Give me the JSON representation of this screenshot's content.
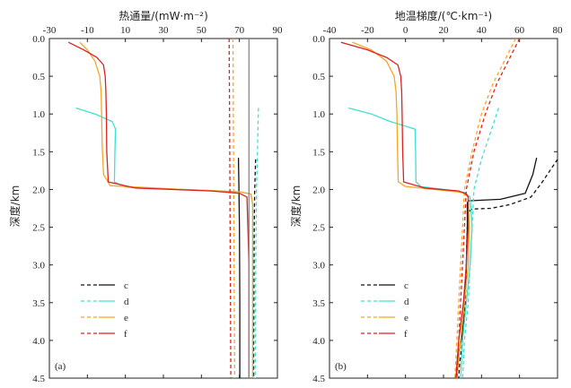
{
  "y_label": "深度/km",
  "chart_data": [
    {
      "type": "line",
      "panel_label": "(a)",
      "title": "热通量/(mW·m⁻²)",
      "xlabel": "热通量/(mW·m⁻²)",
      "ylabel": "深度/km",
      "xlim": [
        -30,
        90
      ],
      "ylim": [
        0.0,
        4.5
      ],
      "x_ticks": [
        "-30",
        "-10",
        "10",
        "30",
        "50",
        "70",
        "90"
      ],
      "y_ticks": [
        "0.0",
        "0.5",
        "1.0",
        "1.5",
        "2.0",
        "2.5",
        "3.0",
        "3.5",
        "4.0",
        "4.5"
      ],
      "legend": [
        "c",
        "d",
        "e",
        "f"
      ],
      "series": [
        {
          "name": "c",
          "style": "dashed",
          "color": "#111111",
          "depth": [
            1.6,
            2.05,
            2.5,
            3.0,
            3.5,
            4.0,
            4.5
          ],
          "x": [
            78.5,
            78.0,
            77.8,
            77.7,
            77.6,
            77.5,
            77.5
          ]
        },
        {
          "name": "c",
          "style": "solid",
          "color": "#111111",
          "depth": [
            1.58,
            2.05,
            2.5,
            3.0,
            3.5,
            4.0,
            4.5
          ],
          "x": [
            69.5,
            69.8,
            70.0,
            70.1,
            70.2,
            70.2,
            70.2
          ]
        },
        {
          "name": "d",
          "style": "dashed",
          "color": "#40e0d0",
          "depth": [
            0.92,
            1.5,
            2.0,
            2.5,
            3.0,
            3.5,
            4.0,
            4.5
          ],
          "x": [
            80.0,
            79.5,
            79.0,
            78.8,
            78.6,
            78.5,
            78.4,
            78.3
          ]
        },
        {
          "name": "d",
          "style": "solid",
          "color": "#40e0d0",
          "depth": [
            0.92,
            1.0,
            1.1,
            1.2,
            1.5,
            1.9,
            1.97,
            2.0,
            2.03,
            2.06,
            2.2,
            3.0,
            4.0,
            4.5
          ],
          "x": [
            -16.0,
            -6.0,
            3.0,
            4.8,
            4.5,
            4.2,
            10.0,
            40.0,
            70.0,
            76.0,
            77.0,
            77.0,
            77.0,
            77.0
          ]
        },
        {
          "name": "e",
          "style": "dashed",
          "color": "#f5a623",
          "depth": [
            0.0,
            1.0,
            2.0,
            3.0,
            4.0,
            4.5
          ],
          "x": [
            66.6,
            66.8,
            67.0,
            67.2,
            67.4,
            67.5
          ]
        },
        {
          "name": "e",
          "style": "solid",
          "color": "#f5a623",
          "depth": [
            0.05,
            0.15,
            0.3,
            0.5,
            0.7,
            1.0,
            1.4,
            1.8,
            1.95,
            2.0,
            2.03,
            2.06,
            2.2,
            3.0,
            4.0,
            4.5
          ],
          "x": [
            -14.0,
            -10.0,
            -6.0,
            -3.5,
            -2.8,
            -2.5,
            -2.2,
            -1.5,
            2.0,
            40.0,
            70.0,
            76.0,
            77.0,
            77.0,
            77.0,
            77.0
          ]
        },
        {
          "name": "f",
          "style": "dashed",
          "color": "#dd2222",
          "depth": [
            0.0,
            1.0,
            2.0,
            3.0,
            4.0,
            4.5
          ],
          "x": [
            64.6,
            64.8,
            65.0,
            65.2,
            65.4,
            65.5
          ]
        },
        {
          "name": "f",
          "style": "solid",
          "color": "#dd2222",
          "depth": [
            0.05,
            0.15,
            0.25,
            0.35,
            0.5,
            0.7,
            1.0,
            1.5,
            1.9,
            1.98,
            2.02,
            2.05,
            2.1,
            3.0,
            4.0,
            4.5
          ],
          "x": [
            -20.0,
            -12.0,
            -5.0,
            -1.5,
            -0.6,
            -0.3,
            0.0,
            0.2,
            1.0,
            15.0,
            55.0,
            70.0,
            74.0,
            75.0,
            75.0,
            75.0
          ]
        },
        {
          "name": "",
          "style": "solid",
          "color": "#888888",
          "depth": [
            0.0,
            4.5
          ],
          "x": [
            75.0,
            75.0
          ]
        }
      ]
    },
    {
      "type": "line",
      "panel_label": "(b)",
      "title": "地温梯度/(℃·km⁻¹)",
      "xlabel": "地温梯度/(℃·km⁻¹)",
      "ylabel": "深度/km",
      "xlim": [
        -40,
        80
      ],
      "ylim": [
        0.0,
        4.5
      ],
      "x_ticks": [
        "-40",
        "-20",
        "0",
        "20",
        "40",
        "60",
        "80"
      ],
      "y_ticks": [
        "0.0",
        "0.5",
        "1.0",
        "1.5",
        "2.0",
        "2.5",
        "3.0",
        "3.5",
        "4.0",
        "4.5"
      ],
      "legend": [
        "c",
        "d",
        "e",
        "f"
      ],
      "series": [
        {
          "name": "c",
          "style": "dashed",
          "color": "#111111",
          "depth": [
            1.6,
            1.9,
            2.1,
            2.2,
            2.25,
            2.26,
            2.3,
            2.5,
            3.0,
            3.5,
            4.0,
            4.3,
            4.5
          ],
          "x": [
            80.0,
            72.0,
            66.0,
            55.0,
            45.0,
            35.0,
            33.0,
            32.5,
            32.0,
            31.5,
            30.0,
            28.5,
            28.0
          ]
        },
        {
          "name": "c",
          "style": "solid",
          "color": "#111111",
          "depth": [
            1.58,
            1.8,
            2.05,
            2.13,
            2.15,
            2.18,
            2.5,
            3.0,
            3.5,
            3.9,
            4.1,
            4.3,
            4.5
          ],
          "x": [
            69.0,
            67.0,
            63.0,
            50.0,
            33.0,
            32.5,
            32.5,
            32.0,
            31.0,
            30.0,
            28.5,
            27.5,
            27.0
          ]
        },
        {
          "name": "d",
          "style": "dashed",
          "color": "#40e0d0",
          "depth": [
            0.92,
            1.3,
            1.6,
            1.8,
            2.0,
            2.5,
            3.0,
            3.5,
            4.0,
            4.5
          ],
          "x": [
            49.0,
            44.0,
            40.0,
            38.0,
            36.0,
            35.0,
            34.0,
            33.0,
            31.0,
            30.0
          ]
        },
        {
          "name": "d",
          "style": "solid",
          "color": "#40e0d0",
          "depth": [
            0.92,
            1.0,
            1.1,
            1.2,
            1.5,
            1.9,
            1.96,
            2.0,
            2.04,
            2.1,
            2.5,
            3.0,
            3.5,
            4.0,
            4.5
          ],
          "x": [
            -30.0,
            -18.0,
            -8.0,
            5.0,
            5.3,
            5.5,
            8.0,
            20.0,
            31.0,
            34.0,
            35.0,
            34.0,
            32.0,
            30.0,
            29.0
          ]
        },
        {
          "name": "e",
          "style": "dashed",
          "color": "#f5a623",
          "depth": [
            0.0,
            0.3,
            0.6,
            1.0,
            1.5,
            2.0,
            2.5,
            3.0,
            3.5,
            4.0,
            4.5
          ],
          "x": [
            58.0,
            52.0,
            46.0,
            40.0,
            35.0,
            31.0,
            30.0,
            29.0,
            28.0,
            27.0,
            26.0
          ]
        },
        {
          "name": "e",
          "style": "solid",
          "color": "#f5a623",
          "depth": [
            0.05,
            0.15,
            0.3,
            0.5,
            0.7,
            1.0,
            1.5,
            1.9,
            1.96,
            2.0,
            2.04,
            2.1,
            2.5,
            3.0,
            3.5,
            4.0,
            4.5
          ],
          "x": [
            -28.0,
            -18.0,
            -10.0,
            -6.0,
            -5.0,
            -4.5,
            -4.2,
            -3.8,
            0.0,
            15.0,
            30.0,
            33.0,
            33.5,
            33.0,
            31.0,
            29.0,
            27.0
          ]
        },
        {
          "name": "f",
          "style": "dashed",
          "color": "#dd2222",
          "depth": [
            0.0,
            0.3,
            0.6,
            1.0,
            1.5,
            2.0,
            2.5,
            3.0,
            3.5,
            4.0,
            4.5
          ],
          "x": [
            60.0,
            54.0,
            48.0,
            42.0,
            36.0,
            32.0,
            31.0,
            30.0,
            29.0,
            28.0,
            27.0
          ]
        },
        {
          "name": "f",
          "style": "solid",
          "color": "#dd2222",
          "depth": [
            0.05,
            0.15,
            0.25,
            0.35,
            0.5,
            0.7,
            1.0,
            1.5,
            1.9,
            1.98,
            2.02,
            2.06,
            2.1,
            2.5,
            3.0,
            3.5,
            4.0,
            4.5
          ],
          "x": [
            -34.0,
            -20.0,
            -10.0,
            -4.0,
            -2.5,
            -2.0,
            -1.8,
            -1.5,
            -1.0,
            10.0,
            28.0,
            32.0,
            33.0,
            33.0,
            32.0,
            30.5,
            28.0,
            26.5
          ]
        }
      ]
    }
  ]
}
